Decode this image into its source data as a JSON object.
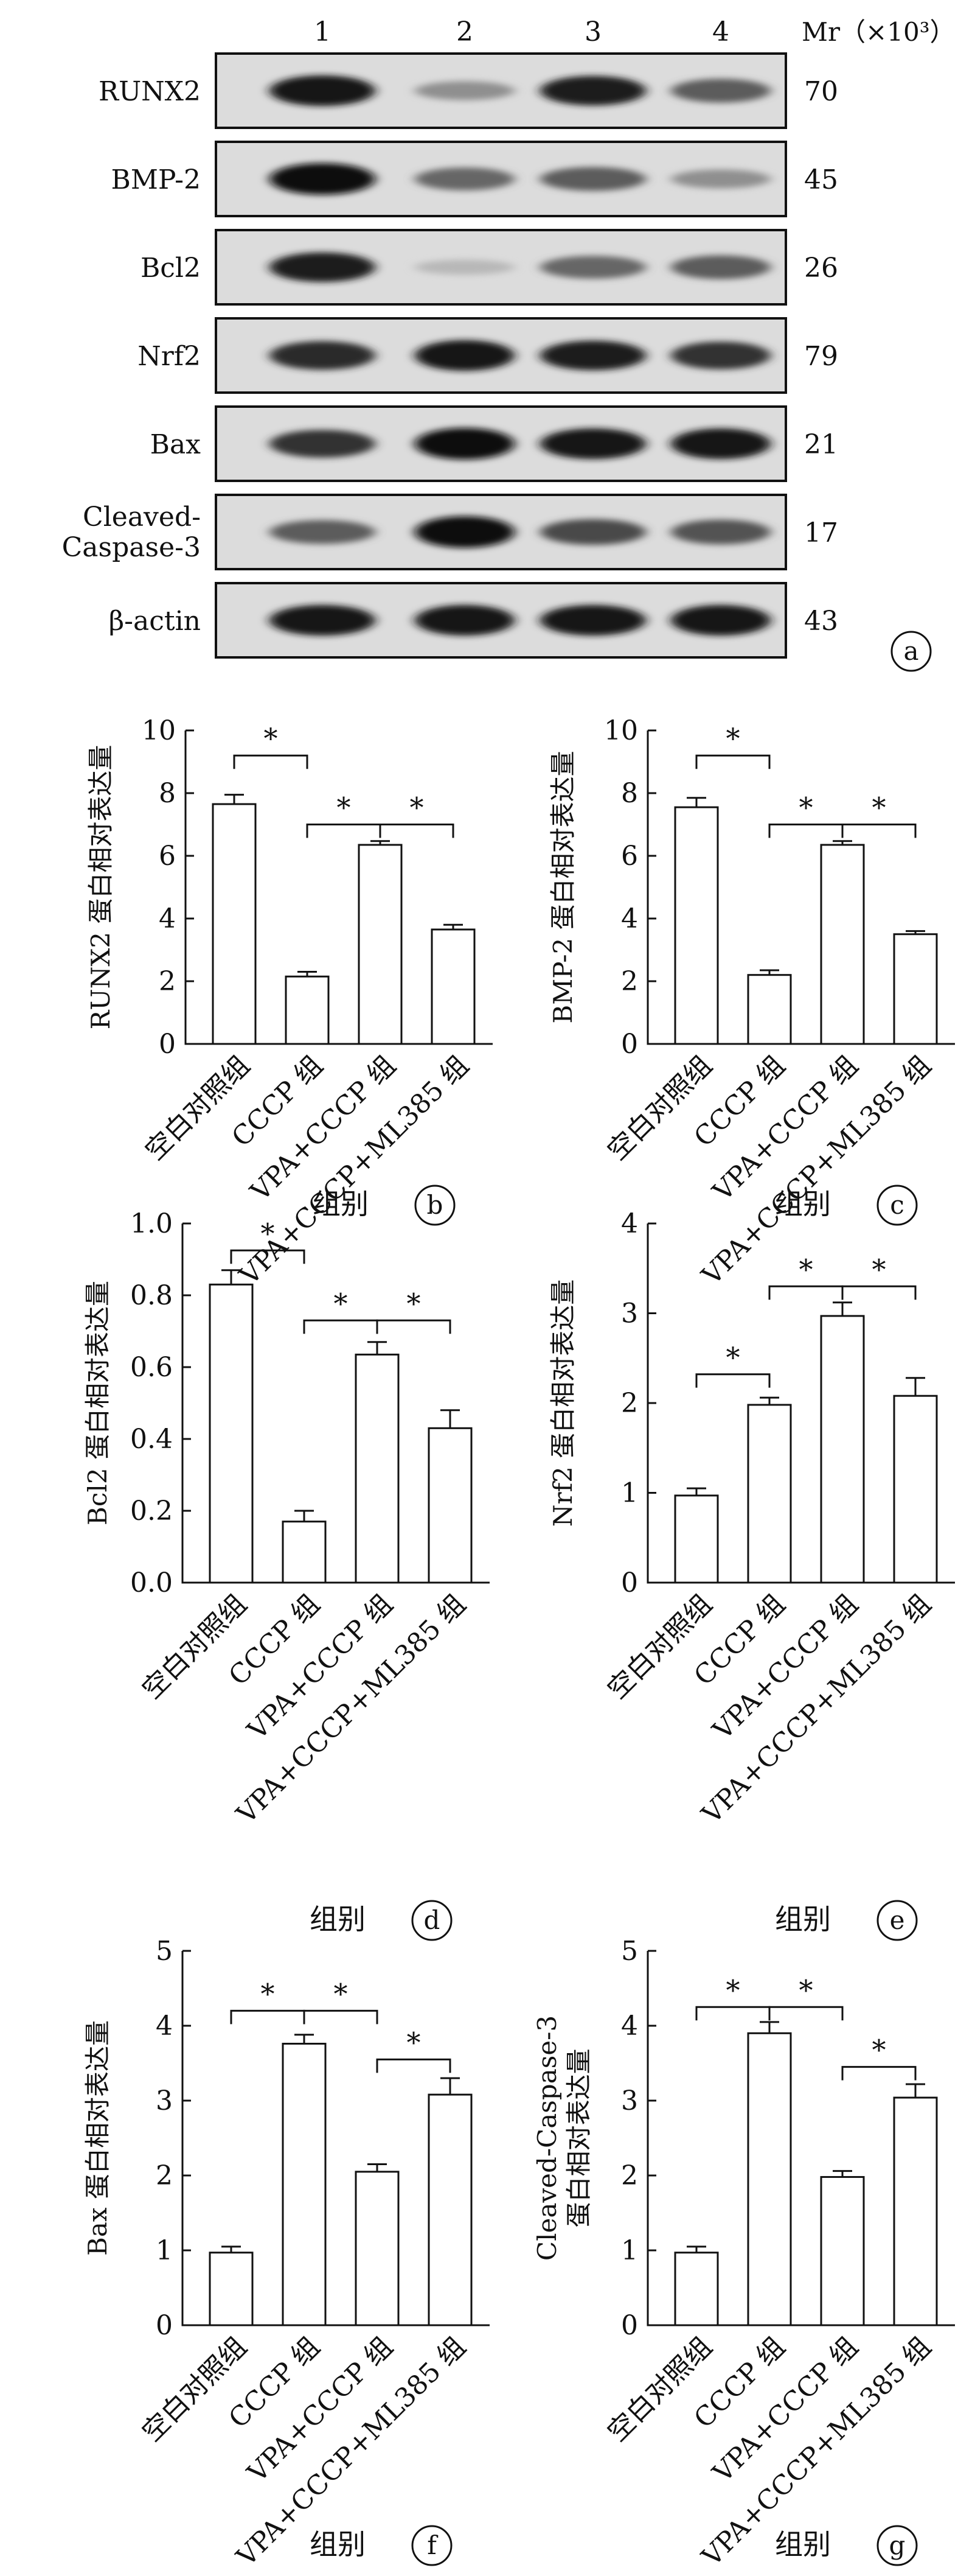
{
  "panel_a": {
    "lanes": [
      "1",
      "2",
      "3",
      "4"
    ],
    "mr_label": "Mr（×10³）",
    "panel_letter": "a",
    "rows": [
      {
        "name": "RUNX2",
        "mr": "70",
        "intensity": [
          0.95,
          0.35,
          0.9,
          0.6
        ]
      },
      {
        "name": "BMP-2",
        "mr": "45",
        "intensity": [
          1.0,
          0.55,
          0.6,
          0.35
        ]
      },
      {
        "name": "Bcl2",
        "mr": "26",
        "intensity": [
          0.9,
          0.15,
          0.55,
          0.6
        ]
      },
      {
        "name": "Nrf2",
        "mr": "79",
        "intensity": [
          0.85,
          0.95,
          0.9,
          0.8
        ]
      },
      {
        "name": "Bax",
        "mr": "21",
        "intensity": [
          0.8,
          1.0,
          0.95,
          0.95
        ]
      },
      {
        "name": "Cleaved-\nCaspase-3",
        "mr": "17",
        "intensity": [
          0.6,
          1.0,
          0.7,
          0.65
        ]
      },
      {
        "name": "β-actin",
        "mr": "43",
        "intensity": [
          0.95,
          0.95,
          0.95,
          0.95
        ]
      }
    ]
  },
  "chart_data": [
    {
      "type": "bar",
      "panel": "b",
      "categories": [
        "空白对照组",
        "CCCP 组",
        "VPA+CCCP 组",
        "VPA+CCCP+ML385 组"
      ],
      "values": [
        7.65,
        2.15,
        6.35,
        3.65
      ],
      "errors": [
        0.3,
        0.15,
        0.12,
        0.15
      ],
      "ylabel": "RUNX2 蛋白相对表达量",
      "xlabel": "组别",
      "ylim": [
        0,
        10
      ],
      "yticks": [
        "0",
        "2",
        "4",
        "6",
        "8",
        "10"
      ],
      "brackets": [
        {
          "from": 0,
          "to": 1,
          "y": 9.2
        },
        {
          "from": 1,
          "to": 2,
          "y": 7.0
        },
        {
          "from": 2,
          "to": 3,
          "y": 7.0
        }
      ]
    },
    {
      "type": "bar",
      "panel": "c",
      "categories": [
        "空白对照组",
        "CCCP 组",
        "VPA+CCCP 组",
        "VPA+CCCP+ML385 组"
      ],
      "values": [
        7.55,
        2.2,
        6.35,
        3.5
      ],
      "errors": [
        0.3,
        0.15,
        0.12,
        0.1
      ],
      "ylabel": "BMP-2 蛋白相对表达量",
      "xlabel": "组别",
      "ylim": [
        0,
        10
      ],
      "yticks": [
        "0",
        "2",
        "4",
        "6",
        "8",
        "10"
      ],
      "brackets": [
        {
          "from": 0,
          "to": 1,
          "y": 9.2
        },
        {
          "from": 1,
          "to": 2,
          "y": 7.0
        },
        {
          "from": 2,
          "to": 3,
          "y": 7.0
        }
      ]
    },
    {
      "type": "bar",
      "panel": "d",
      "categories": [
        "空白对照组",
        "CCCP 组",
        "VPA+CCCP 组",
        "VPA+CCCP+ML385 组"
      ],
      "values": [
        0.83,
        0.17,
        0.635,
        0.43
      ],
      "errors": [
        0.04,
        0.03,
        0.035,
        0.05
      ],
      "ylabel": "Bcl2 蛋白相对表达量",
      "xlabel": "组别",
      "ylim": [
        0,
        1.0
      ],
      "yticks": [
        "0.0",
        "0.2",
        "0.4",
        "0.6",
        "0.8",
        "1.0"
      ],
      "brackets": [
        {
          "from": 0,
          "to": 1,
          "y": 0.925
        },
        {
          "from": 1,
          "to": 2,
          "y": 0.73
        },
        {
          "from": 2,
          "to": 3,
          "y": 0.73
        }
      ]
    },
    {
      "type": "bar",
      "panel": "e",
      "categories": [
        "空白对照组",
        "CCCP 组",
        "VPA+CCCP 组",
        "VPA+CCCP+ML385 组"
      ],
      "values": [
        0.97,
        1.98,
        2.97,
        2.08
      ],
      "errors": [
        0.08,
        0.08,
        0.15,
        0.2
      ],
      "ylabel": "Nrf2 蛋白相对表达量",
      "xlabel": "组别",
      "ylim": [
        0,
        4
      ],
      "yticks": [
        "0",
        "1",
        "2",
        "3",
        "4"
      ],
      "brackets": [
        {
          "from": 0,
          "to": 1,
          "y": 2.32
        },
        {
          "from": 1,
          "to": 2,
          "y": 3.3
        },
        {
          "from": 2,
          "to": 3,
          "y": 3.3
        }
      ]
    },
    {
      "type": "bar",
      "panel": "f",
      "categories": [
        "空白对照组",
        "CCCP 组",
        "VPA+CCCP 组",
        "VPA+CCCP+ML385 组"
      ],
      "values": [
        0.97,
        3.76,
        2.05,
        3.08
      ],
      "errors": [
        0.08,
        0.12,
        0.1,
        0.22
      ],
      "ylabel": "Bax 蛋白相对表达量",
      "xlabel": "组别",
      "ylim": [
        0,
        5
      ],
      "yticks": [
        "0",
        "1",
        "2",
        "3",
        "4",
        "5"
      ],
      "brackets": [
        {
          "from": 0,
          "to": 1,
          "y": 4.2
        },
        {
          "from": 1,
          "to": 2,
          "y": 4.2
        },
        {
          "from": 2,
          "to": 3,
          "y": 3.55
        }
      ]
    },
    {
      "type": "bar",
      "panel": "g",
      "categories": [
        "空白对照组",
        "CCCP 组",
        "VPA+CCCP 组",
        "VPA+CCCP+ML385 组"
      ],
      "values": [
        0.97,
        3.9,
        1.98,
        3.04
      ],
      "errors": [
        0.08,
        0.15,
        0.08,
        0.18
      ],
      "ylabel": "Cleaved-Caspase-3\n蛋白相对表达量",
      "xlabel": "组别",
      "ylim": [
        0,
        5
      ],
      "yticks": [
        "0",
        "1",
        "2",
        "3",
        "4",
        "5"
      ],
      "brackets": [
        {
          "from": 0,
          "to": 1,
          "y": 4.25
        },
        {
          "from": 1,
          "to": 2,
          "y": 4.25
        },
        {
          "from": 2,
          "to": 3,
          "y": 3.45
        }
      ]
    }
  ],
  "significance_mark": "*"
}
